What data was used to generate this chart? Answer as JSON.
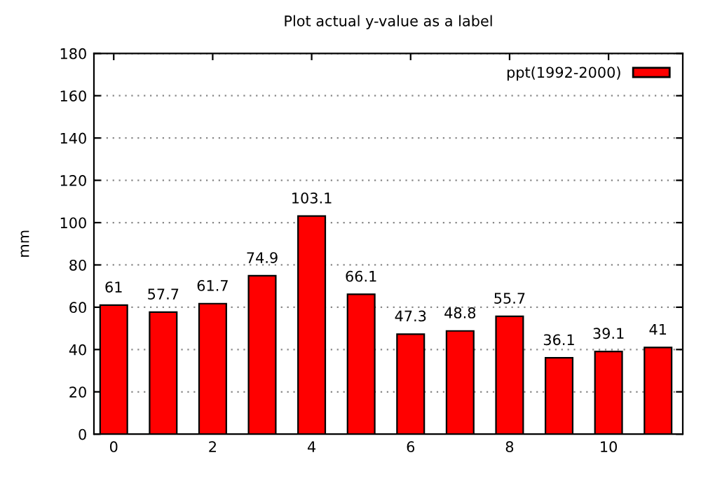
{
  "chart_data": {
    "type": "bar",
    "title": "Plot actual y-value as a label",
    "ylabel": "mm",
    "x": [
      0,
      1,
      2,
      3,
      4,
      5,
      6,
      7,
      8,
      9,
      10,
      11
    ],
    "series": [
      {
        "name": "ppt(1992-2000)",
        "color": "#ff0000",
        "values": [
          61,
          57.7,
          61.7,
          74.9,
          103.1,
          66.1,
          47.3,
          48.8,
          55.7,
          36.1,
          39.1,
          41
        ]
      }
    ],
    "data_labels": true,
    "xlim": [
      -0.4,
      11.5
    ],
    "xticks": [
      0,
      2,
      4,
      6,
      8,
      10
    ],
    "ylim": [
      0,
      180
    ],
    "yticks": [
      0,
      20,
      40,
      60,
      80,
      100,
      120,
      140,
      160,
      180
    ],
    "grid": "y",
    "legend": "top right"
  }
}
